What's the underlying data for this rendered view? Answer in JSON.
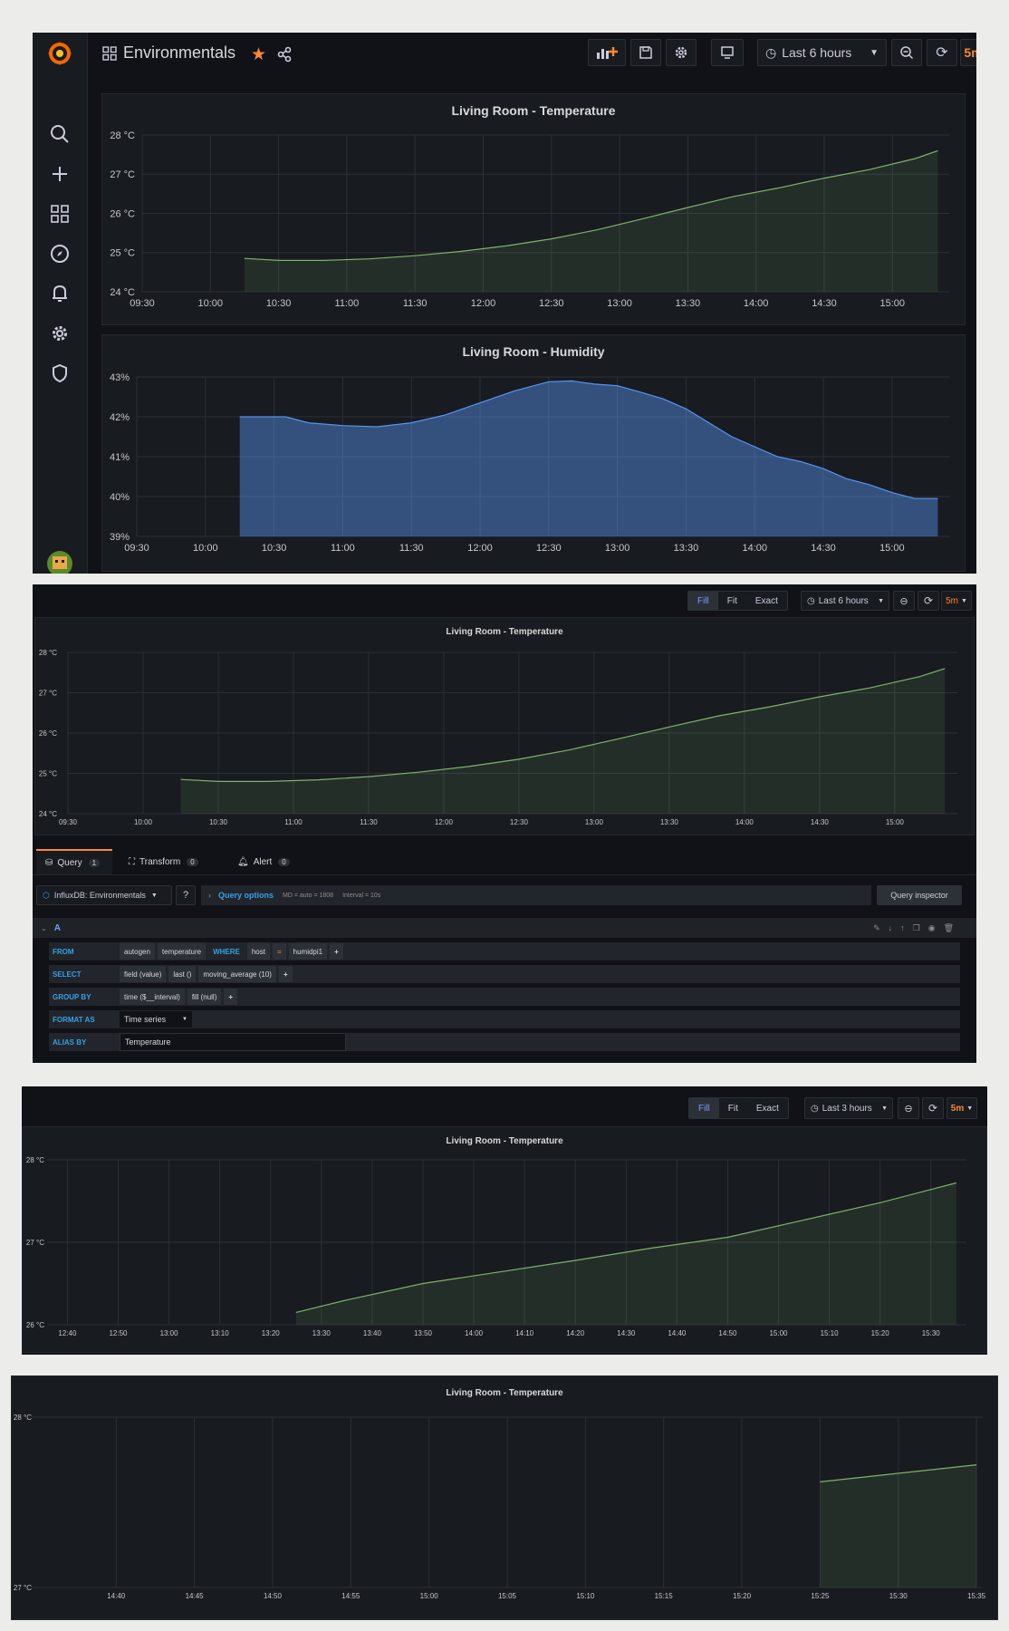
{
  "dashboard": {
    "title": "Environmentals",
    "time_range": "Last 6 hours",
    "refresh": "5m",
    "colors": {
      "accent": "#ff8833",
      "temperature_line": "#7eb26d",
      "humidity_line": "#5794f2",
      "background": "#111217",
      "panel": "#181b1f"
    },
    "icons": [
      "grafana-logo-icon",
      "dashboards-icon",
      "star-icon",
      "share-icon",
      "add-panel-icon",
      "save-icon",
      "settings-icon",
      "tv-mode-icon",
      "clock-icon",
      "zoom-out-icon",
      "refresh-icon"
    ],
    "sidebar_icons": [
      "search-icon",
      "plus-icon",
      "dashboards-grid-icon",
      "explore-compass-icon",
      "alert-bell-icon",
      "config-gear-icon",
      "shield-icon",
      "user-avatar-icon"
    ]
  },
  "editor": {
    "mode_options": [
      "Fill",
      "Fit",
      "Exact"
    ],
    "mode_selected": "Fill",
    "time_range": "Last 6 hours",
    "refresh": "5m",
    "tabs": [
      {
        "label": "Query",
        "count": "1"
      },
      {
        "label": "Transform",
        "count": "0"
      },
      {
        "label": "Alert",
        "count": "0"
      }
    ],
    "datasource": "InfluxDB: Environmentals",
    "query_options_label": "Query options",
    "query_options_md": "MD = auto = 1808",
    "query_options_interval": "Interval = 10s",
    "query_inspector": "Query inspector",
    "query_ref": "A",
    "rows": {
      "from": {
        "label": "FROM",
        "chips": [
          "autogen",
          "temperature",
          "WHERE",
          "host",
          "=",
          "humidpi1",
          "+"
        ]
      },
      "select": {
        "label": "SELECT",
        "chips": [
          "field (value)",
          "last ()",
          "moving_average (10)",
          "+"
        ]
      },
      "group_by": {
        "label": "GROUP BY",
        "chips": [
          "time ($__interval)",
          "fill (null)",
          "+"
        ]
      },
      "format_as": {
        "label": "FORMAT AS",
        "value": "Time series"
      },
      "alias_by": {
        "label": "ALIAS BY",
        "value": "Temperature"
      }
    }
  },
  "view3": {
    "mode_options": [
      "Fill",
      "Fit",
      "Exact"
    ],
    "mode_selected": "Fill",
    "time_range": "Last 3 hours",
    "refresh": "5m"
  },
  "chart_data": [
    {
      "type": "area",
      "title": "Living Room - Temperature",
      "x_ticks": [
        "09:30",
        "10:00",
        "10:30",
        "11:00",
        "11:30",
        "12:00",
        "12:30",
        "13:00",
        "13:30",
        "14:00",
        "14:30",
        "15:00"
      ],
      "xlim_minutes": [
        570,
        925
      ],
      "y_ticks": [
        "24 °C",
        "25 °C",
        "26 °C",
        "27 °C",
        "28 °C"
      ],
      "ylim": [
        24,
        28
      ],
      "grid": true,
      "series": [
        {
          "color": "#7eb26d",
          "x": [
            615,
            630,
            650,
            670,
            690,
            710,
            730,
            750,
            770,
            790,
            810,
            830,
            850,
            870,
            890,
            910,
            920
          ],
          "y": [
            24.85,
            24.8,
            24.8,
            24.84,
            24.92,
            25.03,
            25.17,
            25.35,
            25.58,
            25.86,
            26.15,
            26.43,
            26.65,
            26.9,
            27.12,
            27.4,
            27.6
          ]
        }
      ]
    },
    {
      "type": "area",
      "title": "Living Room - Humidity",
      "x_ticks": [
        "09:30",
        "10:00",
        "10:30",
        "11:00",
        "11:30",
        "12:00",
        "12:30",
        "13:00",
        "13:30",
        "14:00",
        "14:30",
        "15:00"
      ],
      "xlim_minutes": [
        570,
        925
      ],
      "y_ticks": [
        "39%",
        "40%",
        "41%",
        "42%",
        "43%"
      ],
      "ylim": [
        39,
        43
      ],
      "grid": true,
      "series": [
        {
          "color": "#5794f2",
          "x": [
            615,
            625,
            635,
            645,
            660,
            675,
            690,
            705,
            720,
            735,
            750,
            760,
            770,
            780,
            790,
            800,
            810,
            820,
            830,
            840,
            850,
            860,
            870,
            880,
            890,
            900,
            910,
            920
          ],
          "y": [
            42.0,
            42.0,
            42.0,
            41.85,
            41.78,
            41.75,
            41.85,
            42.05,
            42.35,
            42.65,
            42.88,
            42.9,
            42.82,
            42.78,
            42.62,
            42.45,
            42.2,
            41.85,
            41.5,
            41.25,
            41.0,
            40.88,
            40.7,
            40.45,
            40.3,
            40.1,
            39.95,
            39.95
          ]
        }
      ]
    },
    {
      "type": "area",
      "title": "Living Room - Temperature",
      "x_ticks": [
        "09:30",
        "10:00",
        "10:30",
        "11:00",
        "11:30",
        "12:00",
        "12:30",
        "13:00",
        "13:30",
        "14:00",
        "14:30",
        "15:00"
      ],
      "xlim_minutes": [
        570,
        925
      ],
      "y_ticks": [
        "24 °C",
        "25 °C",
        "26 °C",
        "27 °C",
        "28 °C"
      ],
      "ylim": [
        24,
        28
      ],
      "grid": true,
      "series": [
        {
          "color": "#7eb26d",
          "x": [
            615,
            630,
            650,
            670,
            690,
            710,
            730,
            750,
            770,
            790,
            810,
            830,
            850,
            870,
            890,
            910,
            920
          ],
          "y": [
            24.85,
            24.8,
            24.8,
            24.84,
            24.92,
            25.03,
            25.17,
            25.35,
            25.58,
            25.86,
            26.15,
            26.43,
            26.65,
            26.9,
            27.12,
            27.4,
            27.6
          ]
        }
      ]
    },
    {
      "type": "area",
      "title": "Living Room - Temperature",
      "x_ticks": [
        "12:40",
        "12:50",
        "13:00",
        "13:10",
        "13:20",
        "13:30",
        "13:40",
        "13:50",
        "14:00",
        "14:10",
        "14:20",
        "14:30",
        "14:40",
        "14:50",
        "15:00",
        "15:10",
        "15:20",
        "15:30"
      ],
      "xlim_minutes": [
        756,
        937
      ],
      "y_ticks": [
        "26 °C",
        "27 °C",
        "28 °C"
      ],
      "ylim": [
        26,
        28
      ],
      "grid": true,
      "series": [
        {
          "color": "#7eb26d",
          "x": [
            805,
            815,
            830,
            845,
            860,
            875,
            890,
            905,
            920,
            935
          ],
          "y": [
            26.15,
            26.3,
            26.5,
            26.64,
            26.78,
            26.93,
            27.06,
            27.27,
            27.48,
            27.72
          ]
        }
      ]
    },
    {
      "type": "area",
      "title": "Living Room - Temperature",
      "x_ticks": [
        "14:40",
        "14:45",
        "14:50",
        "14:55",
        "15:00",
        "15:05",
        "15:10",
        "15:15",
        "15:20",
        "15:25",
        "15:30",
        "15:35"
      ],
      "xlim_minutes": [
        874.6,
        935.4
      ],
      "y_ticks": [
        "27 °C",
        "28 °C"
      ],
      "ylim": [
        27,
        28
      ],
      "grid": true,
      "series": [
        {
          "color": "#7eb26d",
          "x": [
            925,
            930,
            935
          ],
          "y": [
            27.62,
            27.67,
            27.72
          ]
        }
      ]
    }
  ]
}
